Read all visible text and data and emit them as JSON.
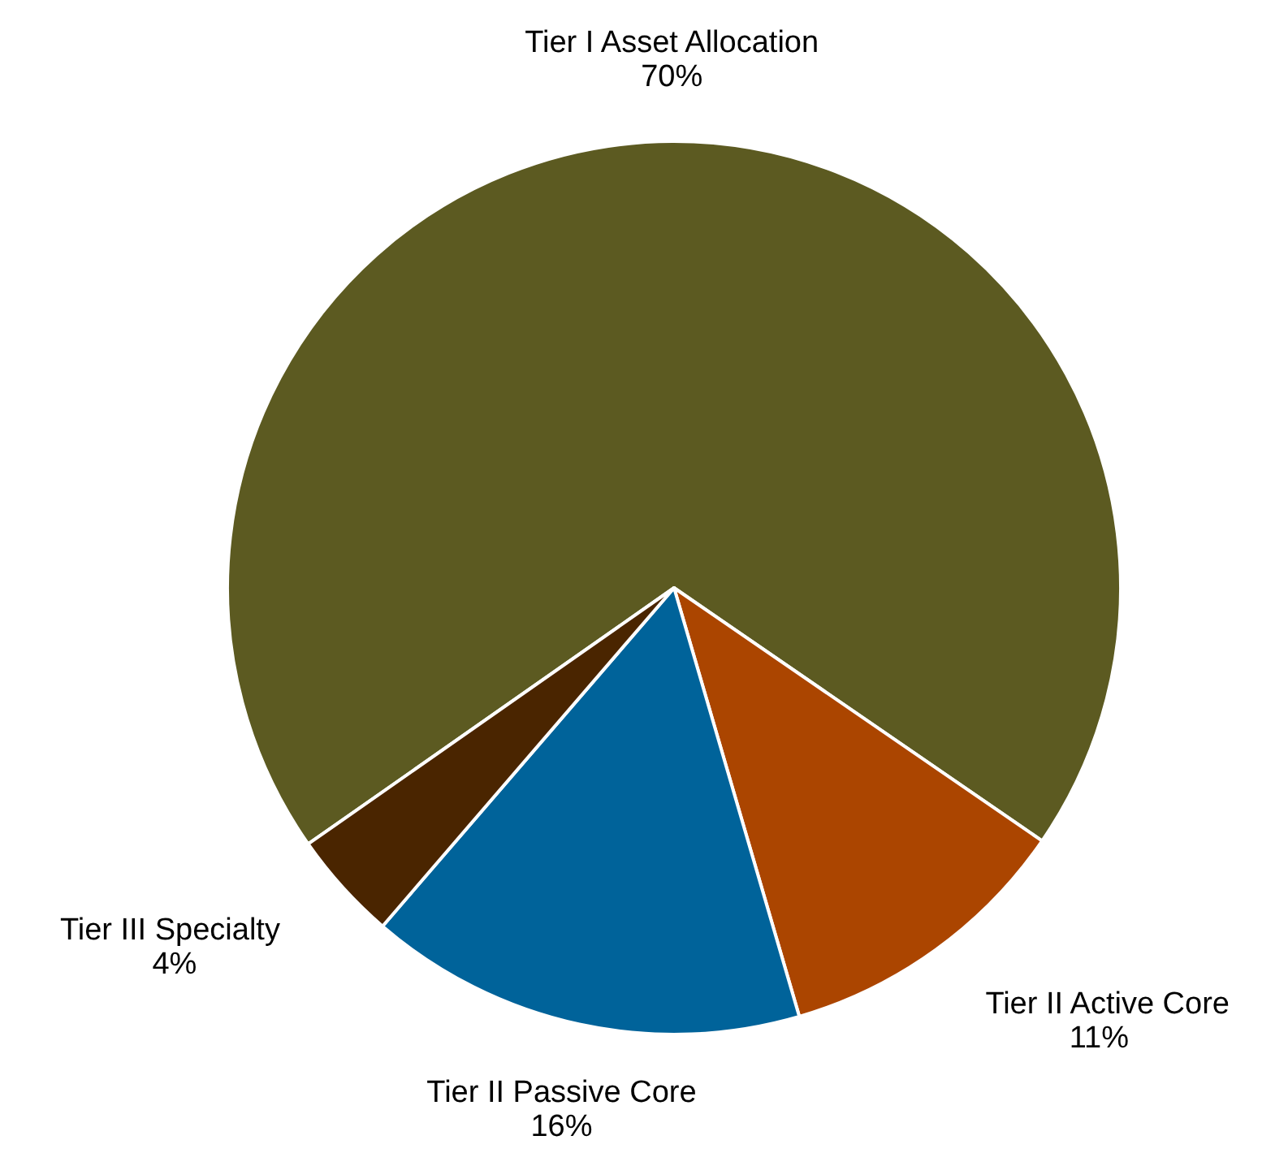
{
  "chart_data": {
    "type": "pie",
    "categories": [
      "Tier I Asset Allocation",
      "Tier II Active Core",
      "Tier II Passive Core",
      "Tier III Specialty"
    ],
    "values": [
      70,
      11,
      16,
      4
    ],
    "value_labels": [
      "70%",
      "11%",
      "16%",
      "4%"
    ],
    "colors": [
      "#5c5a21",
      "#ab4500",
      "#00639a",
      "#4a2500"
    ]
  }
}
